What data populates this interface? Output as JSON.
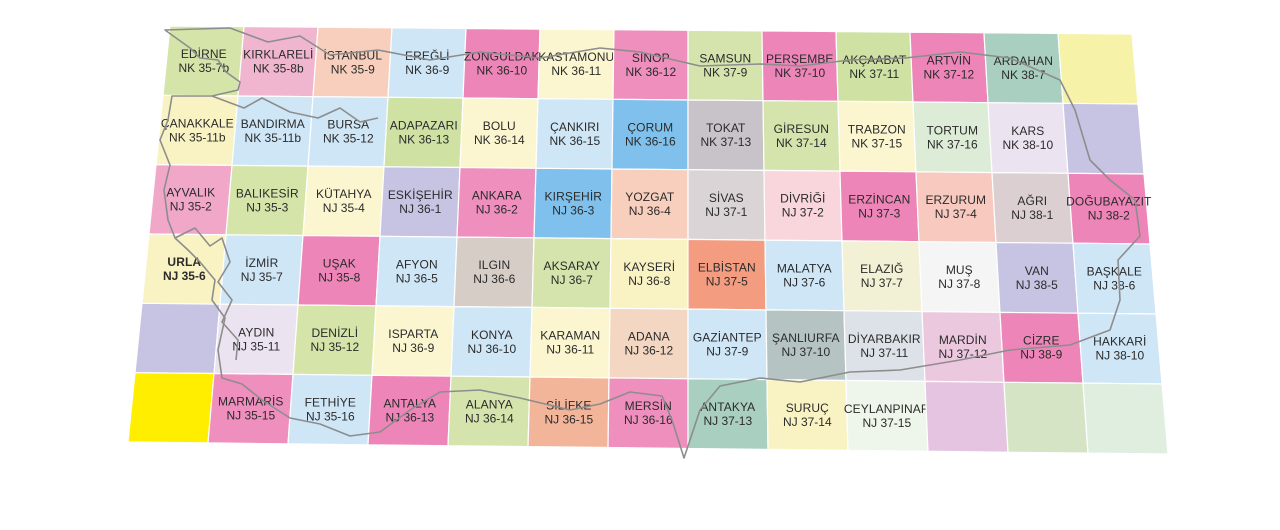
{
  "map": {
    "rows": [
      [
        {
          "name": "EDİRNE",
          "code": "NK 35-7b",
          "color": "#d5e4a8"
        },
        {
          "name": "KIRKLARELİ",
          "code": "NK 35-8b",
          "color": "#f1b6cf"
        },
        {
          "name": "İSTANBUL",
          "code": "NK 35-9",
          "color": "#f8cfbc"
        },
        {
          "name": "EREĞLİ",
          "code": "NK 36-9",
          "color": "#cfe6f6"
        },
        {
          "name": "ZONGULDAK",
          "code": "NK 36-10",
          "color": "#ee85b8"
        },
        {
          "name": "KASTAMONU",
          "code": "NK 36-11",
          "color": "#fbf6d0"
        },
        {
          "name": "SİNOP",
          "code": "NK 36-12",
          "color": "#ee8fbd"
        },
        {
          "name": "SAMSUN",
          "code": "NK 37-9",
          "color": "#d4e4ac"
        },
        {
          "name": "PERŞEMBE",
          "code": "NK 37-10",
          "color": "#ee85b8"
        },
        {
          "name": "AKÇAABAT",
          "code": "NK 37-11",
          "color": "#cfe2a4"
        },
        {
          "name": "ARTVİN",
          "code": "NK 37-12",
          "color": "#ee85b8"
        },
        {
          "name": "ARDAHAN",
          "code": "NK 38-7",
          "color": "#a9cfc1"
        },
        {
          "name": "",
          "code": "",
          "color": "#f6f2a8"
        }
      ],
      [
        {
          "name": "ÇANAKKALE",
          "code": "NK 35-11b",
          "color": "#f9f3c4"
        },
        {
          "name": "BANDIRMA",
          "code": "NK 35-11b",
          "color": "#cfe6f6"
        },
        {
          "name": "BURSA",
          "code": "NK 35-12",
          "color": "#cfe6f6"
        },
        {
          "name": "ADAPAZARI",
          "code": "NK 36-13",
          "color": "#cfe2a4"
        },
        {
          "name": "BOLU",
          "code": "NK 36-14",
          "color": "#fbf6d0"
        },
        {
          "name": "ÇANKIRI",
          "code": "NK 36-15",
          "color": "#cfe6f6"
        },
        {
          "name": "ÇORUM",
          "code": "NK 36-16",
          "color": "#7fc1ec"
        },
        {
          "name": "TOKAT",
          "code": "NK 37-13",
          "color": "#c8c2c9"
        },
        {
          "name": "GİRESUN",
          "code": "NK 37-14",
          "color": "#d4e4ac"
        },
        {
          "name": "TRABZON",
          "code": "NK 37-15",
          "color": "#fbf6d0"
        },
        {
          "name": "TORTUM",
          "code": "NK 37-16",
          "color": "#dcecd6"
        },
        {
          "name": "KARS",
          "code": "NK 38-10",
          "color": "#ece3f1"
        },
        {
          "name": "",
          "code": "",
          "color": "#c7c3e2"
        }
      ],
      [
        {
          "name": "AYVALIK",
          "code": "NJ 35-2",
          "color": "#f1a7c8"
        },
        {
          "name": "BALIKESİR",
          "code": "NJ 35-3",
          "color": "#d5e4a8"
        },
        {
          "name": "KÜTAHYA",
          "code": "NJ 35-4",
          "color": "#fbf6d0"
        },
        {
          "name": "ESKİŞEHİR",
          "code": "NJ 36-1",
          "color": "#c7c3e2"
        },
        {
          "name": "ANKARA",
          "code": "NJ 36-2",
          "color": "#ee8fbd"
        },
        {
          "name": "KIRŞEHİR",
          "code": "NJ 36-3",
          "color": "#7fc1ec"
        },
        {
          "name": "YOZGAT",
          "code": "NJ 36-4",
          "color": "#f8cfbc"
        },
        {
          "name": "SİVAS",
          "code": "NJ 37-1",
          "color": "#dbd4d6"
        },
        {
          "name": "DİVRİĞİ",
          "code": "NJ 37-2",
          "color": "#f8d6dc"
        },
        {
          "name": "ERZİNCAN",
          "code": "NJ 37-3",
          "color": "#ee85b8"
        },
        {
          "name": "ERZURUM",
          "code": "NJ 37-4",
          "color": "#f8c9bf"
        },
        {
          "name": "AĞRI",
          "code": "NJ 38-1",
          "color": "#dbcfd2"
        },
        {
          "name": "DOĞUBAYAZIT",
          "code": "NJ 38-2",
          "color": "#ee85b8"
        }
      ],
      [
        {
          "name": "URLA",
          "code": "NJ 35-6",
          "color": "#f9f3c4"
        },
        {
          "name": "İZMİR",
          "code": "NJ 35-7",
          "color": "#cfe6f6"
        },
        {
          "name": "UŞAK",
          "code": "NJ 35-8",
          "color": "#ee85b8"
        },
        {
          "name": "AFYON",
          "code": "NJ 36-5",
          "color": "#cfe6f6"
        },
        {
          "name": "ILGIN",
          "code": "NJ 36-6",
          "color": "#d6cdc7"
        },
        {
          "name": "AKSARAY",
          "code": "NJ 36-7",
          "color": "#d4e4ac"
        },
        {
          "name": "KAYSERİ",
          "code": "NJ 36-8",
          "color": "#f9f3c4"
        },
        {
          "name": "ELBİSTAN",
          "code": "NJ 37-5",
          "color": "#f39c80"
        },
        {
          "name": "MALATYA",
          "code": "NJ 37-6",
          "color": "#cfe6f6"
        },
        {
          "name": "ELAZIĞ",
          "code": "NJ 37-7",
          "color": "#f3f1d5"
        },
        {
          "name": "MUŞ",
          "code": "NJ 37-8",
          "color": "#f5f5f5"
        },
        {
          "name": "VAN",
          "code": "NJ 38-5",
          "color": "#c7c3e2"
        },
        {
          "name": "BAŞKALE",
          "code": "NJ 38-6",
          "color": "#cfe6f6"
        }
      ],
      [
        {
          "name": "",
          "code": "",
          "color": "#c7c3e2"
        },
        {
          "name": "AYDIN",
          "code": "NJ 35-11",
          "color": "#ece3f1"
        },
        {
          "name": "DENİZLİ",
          "code": "NJ 35-12",
          "color": "#d5e4a8"
        },
        {
          "name": "ISPARTA",
          "code": "NJ 36-9",
          "color": "#fbf6d0"
        },
        {
          "name": "KONYA",
          "code": "NJ 36-10",
          "color": "#cfe6f6"
        },
        {
          "name": "KARAMAN",
          "code": "NJ 36-11",
          "color": "#fbf6d0"
        },
        {
          "name": "ADANA",
          "code": "NJ 36-12",
          "color": "#f3d7c2"
        },
        {
          "name": "GAZİANTEP",
          "code": "NJ 37-9",
          "color": "#cfe6f6"
        },
        {
          "name": "ŞANLIURFA",
          "code": "NJ 37-10",
          "color": "#b5c4c3"
        },
        {
          "name": "DİYARBAKIR",
          "code": "NJ 37-11",
          "color": "#dde2e8"
        },
        {
          "name": "MARDİN",
          "code": "NJ 37-12",
          "color": "#ecc8de"
        },
        {
          "name": "CİZRE",
          "code": "NJ 38-9",
          "color": "#ee85b8"
        },
        {
          "name": "HAKKARİ",
          "code": "NJ 38-10",
          "color": "#cfe6f6"
        }
      ],
      [
        {
          "name": "",
          "code": "",
          "color": "#ffee00"
        },
        {
          "name": "MARMARİS",
          "code": "NJ 35-15",
          "color": "#ee8fbd"
        },
        {
          "name": "FETHİYE",
          "code": "NJ 35-16",
          "color": "#cfe6f6"
        },
        {
          "name": "ANTALYA",
          "code": "NJ 36-13",
          "color": "#ee85b8"
        },
        {
          "name": "ALANYA",
          "code": "NJ 36-14",
          "color": "#d4e4ac"
        },
        {
          "name": "SİLİFKE",
          "code": "NJ 36-15",
          "color": "#f3b59a"
        },
        {
          "name": "MERSİN",
          "code": "NJ 36-16",
          "color": "#ee8fbd"
        },
        {
          "name": "ANTAKYA",
          "code": "NJ 37-13",
          "color": "#a9cfc1"
        },
        {
          "name": "SURUÇ",
          "code": "NJ 37-14",
          "color": "#f9f3c4"
        },
        {
          "name": "CEYLANPINAR",
          "code": "NJ 37-15",
          "color": "#eef5ea"
        },
        {
          "name": "",
          "code": "",
          "color": "#e4c4e0"
        },
        {
          "name": "",
          "code": "",
          "color": "#d5e4c4"
        },
        {
          "name": "",
          "code": "",
          "color": "#dfeedf"
        }
      ]
    ]
  }
}
